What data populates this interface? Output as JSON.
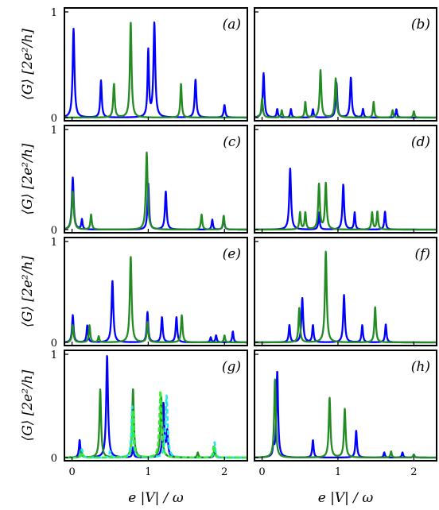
{
  "chart_data": {
    "type": "line",
    "xlabel": "e |V| / ω",
    "ylabel": "⟨G⟩ [2e²/h]",
    "xlim": [
      -0.1,
      2.3
    ],
    "ylim": [
      0,
      1
    ],
    "xticks": [
      "0",
      "1",
      "2"
    ],
    "yticks": [
      "0",
      "1"
    ],
    "grid": false,
    "colors": {
      "blue": "#0000ff",
      "green": "#228b22",
      "cyan": "#22e5ee",
      "lime": "#33ee33"
    },
    "panels": [
      {
        "label": "(a)",
        "series": [
          {
            "color": "blue",
            "peaks": [
              [
                0.02,
                0.84,
                0.014
              ],
              [
                0.38,
                0.35,
                0.012
              ],
              [
                1.0,
                0.63,
                0.011
              ],
              [
                1.08,
                0.89,
                0.014
              ],
              [
                1.62,
                0.36,
                0.013
              ],
              [
                2.0,
                0.12,
                0.012
              ]
            ]
          },
          {
            "color": "green",
            "peaks": [
              [
                0.55,
                0.32,
                0.012
              ],
              [
                0.77,
                0.9,
                0.013
              ],
              [
                1.43,
                0.32,
                0.011
              ]
            ]
          }
        ]
      },
      {
        "label": "(b)",
        "series": [
          {
            "color": "blue",
            "peaks": [
              [
                0.02,
                0.42,
                0.013
              ],
              [
                0.2,
                0.08,
                0.01
              ],
              [
                0.38,
                0.08,
                0.01
              ],
              [
                0.67,
                0.08,
                0.01
              ],
              [
                0.98,
                0.33,
                0.012
              ],
              [
                1.17,
                0.38,
                0.013
              ],
              [
                1.33,
                0.08,
                0.01
              ],
              [
                1.77,
                0.08,
                0.01
              ]
            ]
          },
          {
            "color": "green",
            "peaks": [
              [
                0.0,
                0.18,
                0.012
              ],
              [
                0.26,
                0.07,
                0.01
              ],
              [
                0.57,
                0.15,
                0.01
              ],
              [
                0.77,
                0.45,
                0.013
              ],
              [
                0.97,
                0.37,
                0.013
              ],
              [
                1.47,
                0.15,
                0.01
              ],
              [
                1.72,
                0.07,
                0.01
              ],
              [
                2.0,
                0.06,
                0.01
              ]
            ]
          }
        ]
      },
      {
        "label": "(c)",
        "series": [
          {
            "color": "blue",
            "peaks": [
              [
                0.01,
                0.52,
                0.014
              ],
              [
                0.13,
                0.1,
                0.01
              ],
              [
                1.0,
                0.46,
                0.012
              ],
              [
                1.23,
                0.38,
                0.013
              ],
              [
                1.84,
                0.1,
                0.01
              ],
              [
                1.99,
                0.13,
                0.01
              ]
            ]
          },
          {
            "color": "green",
            "peaks": [
              [
                0.01,
                0.38,
                0.015
              ],
              [
                0.25,
                0.15,
                0.011
              ],
              [
                0.98,
                0.77,
                0.014
              ],
              [
                1.7,
                0.15,
                0.011
              ],
              [
                1.99,
                0.14,
                0.011
              ]
            ]
          }
        ]
      },
      {
        "label": "(d)",
        "series": [
          {
            "color": "blue",
            "peaks": [
              [
                0.37,
                0.61,
                0.014
              ],
              [
                0.75,
                0.17,
                0.01
              ],
              [
                1.07,
                0.45,
                0.013
              ],
              [
                1.22,
                0.17,
                0.01
              ],
              [
                1.62,
                0.18,
                0.011
              ]
            ]
          },
          {
            "color": "green",
            "peaks": [
              [
                0.5,
                0.17,
                0.011
              ],
              [
                0.57,
                0.17,
                0.011
              ],
              [
                0.75,
                0.45,
                0.013
              ],
              [
                0.84,
                0.46,
                0.013
              ],
              [
                1.45,
                0.17,
                0.011
              ],
              [
                1.52,
                0.18,
                0.011
              ]
            ]
          }
        ]
      },
      {
        "label": "(e)",
        "series": [
          {
            "color": "blue",
            "peaks": [
              [
                0.01,
                0.27,
                0.012
              ],
              [
                0.2,
                0.17,
                0.011
              ],
              [
                0.53,
                0.61,
                0.014
              ],
              [
                0.99,
                0.3,
                0.012
              ],
              [
                1.18,
                0.25,
                0.012
              ],
              [
                1.37,
                0.25,
                0.012
              ],
              [
                1.82,
                0.05,
                0.01
              ],
              [
                1.89,
                0.07,
                0.01
              ],
              [
                2.11,
                0.11,
                0.01
              ]
            ]
          },
          {
            "color": "green",
            "peaks": [
              [
                0.01,
                0.17,
                0.012
              ],
              [
                0.23,
                0.17,
                0.011
              ],
              [
                0.35,
                0.06,
                0.01
              ],
              [
                0.77,
                0.85,
                0.014
              ],
              [
                0.99,
                0.2,
                0.011
              ],
              [
                1.44,
                0.27,
                0.012
              ],
              [
                2.0,
                0.07,
                0.01
              ]
            ]
          }
        ]
      },
      {
        "label": "(f)",
        "series": [
          {
            "color": "blue",
            "peaks": [
              [
                0.36,
                0.17,
                0.011
              ],
              [
                0.53,
                0.44,
                0.013
              ],
              [
                0.67,
                0.17,
                0.011
              ],
              [
                1.08,
                0.47,
                0.013
              ],
              [
                1.32,
                0.17,
                0.011
              ],
              [
                1.63,
                0.18,
                0.011
              ]
            ]
          },
          {
            "color": "green",
            "peaks": [
              [
                0.49,
                0.34,
                0.012
              ],
              [
                0.84,
                0.9,
                0.014
              ],
              [
                1.49,
                0.35,
                0.012
              ]
            ]
          }
        ]
      },
      {
        "label": "(g)",
        "series": [
          {
            "color": "blue",
            "peaks": [
              [
                0.1,
                0.17,
                0.011
              ],
              [
                0.46,
                0.99,
                0.014
              ],
              [
                0.8,
                0.1,
                0.01
              ],
              [
                1.2,
                0.52,
                0.014
              ],
              [
                1.25,
                0.24,
                0.011
              ],
              [
                1.87,
                0.06,
                0.01
              ]
            ]
          },
          {
            "color": "green",
            "peaks": [
              [
                0.12,
                0.08,
                0.01
              ],
              [
                0.37,
                0.66,
                0.013
              ],
              [
                0.8,
                0.67,
                0.013
              ],
              [
                1.17,
                0.6,
                0.014
              ],
              [
                1.65,
                0.05,
                0.01
              ],
              [
                1.87,
                0.1,
                0.01
              ]
            ]
          },
          {
            "color": "cyan",
            "dashed": true,
            "peaks": [
              [
                0.13,
                0.08,
                0.012
              ],
              [
                0.5,
                0.06,
                0.012
              ],
              [
                0.79,
                0.5,
                0.013
              ],
              [
                1.24,
                0.6,
                0.016
              ],
              [
                1.87,
                0.15,
                0.011
              ]
            ]
          },
          {
            "color": "lime",
            "dashed": true,
            "peaks": [
              [
                0.13,
                0.05,
                0.012
              ],
              [
                0.8,
                0.45,
                0.013
              ],
              [
                1.16,
                0.65,
                0.016
              ],
              [
                1.86,
                0.12,
                0.011
              ]
            ]
          }
        ]
      },
      {
        "label": "(h)",
        "series": [
          {
            "color": "blue",
            "peaks": [
              [
                0.15,
                0.1,
                0.01
              ],
              [
                0.2,
                0.84,
                0.013
              ],
              [
                0.67,
                0.17,
                0.011
              ],
              [
                1.24,
                0.26,
                0.012
              ],
              [
                1.61,
                0.05,
                0.01
              ],
              [
                1.85,
                0.05,
                0.01
              ],
              [
                2.0,
                0.03,
                0.01
              ]
            ]
          },
          {
            "color": "green",
            "peaks": [
              [
                0.17,
                0.76,
                0.013
              ],
              [
                0.89,
                0.58,
                0.013
              ],
              [
                1.09,
                0.47,
                0.013
              ],
              [
                1.7,
                0.06,
                0.01
              ],
              [
                2.0,
                0.03,
                0.01
              ]
            ]
          }
        ]
      }
    ]
  }
}
